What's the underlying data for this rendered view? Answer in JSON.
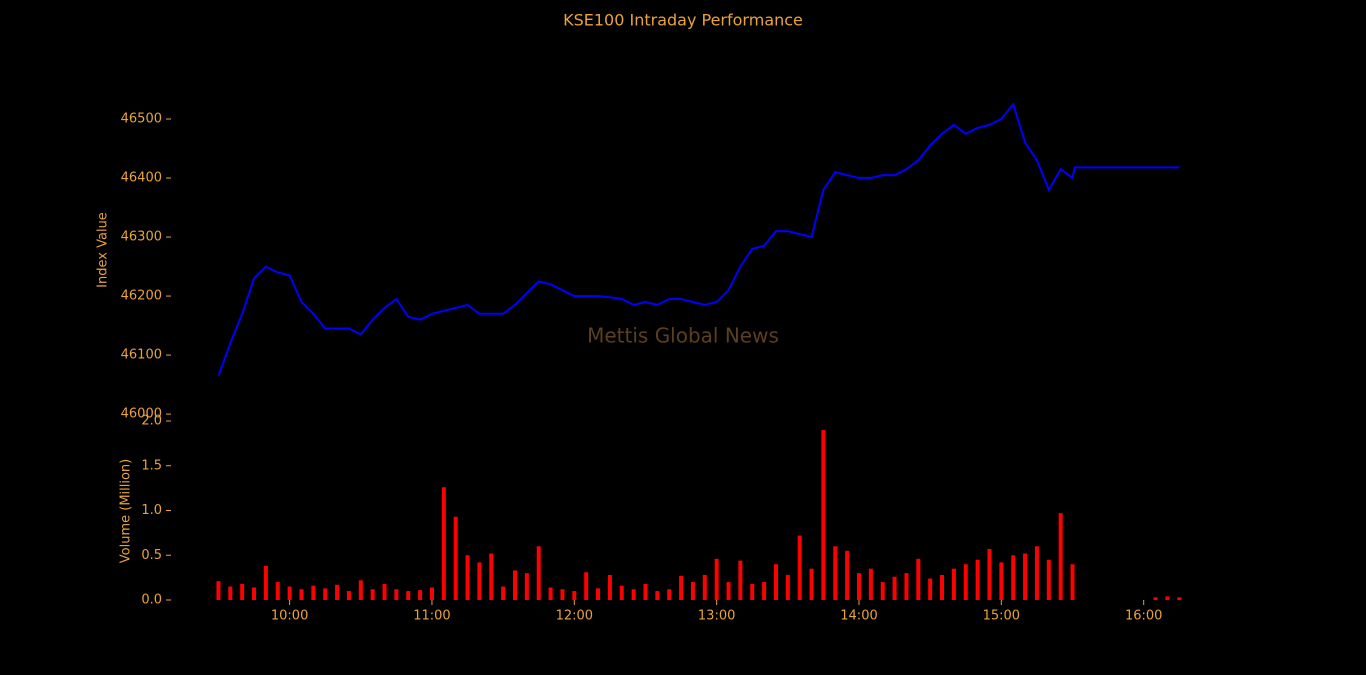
{
  "chart_data": [
    {
      "type": "line",
      "title": "KSE100 Intraday Performance",
      "y_label": "Index Value",
      "annotation": "Mettis Global News",
      "color": "#0000ff",
      "x": [
        570,
        575,
        580,
        585,
        590,
        595,
        600,
        605,
        610,
        615,
        620,
        625,
        630,
        635,
        640,
        645,
        650,
        655,
        660,
        665,
        670,
        675,
        680,
        685,
        690,
        695,
        700,
        705,
        710,
        715,
        720,
        725,
        730,
        735,
        740,
        745,
        750,
        755,
        760,
        765,
        770,
        775,
        780,
        785,
        790,
        795,
        800,
        805,
        810,
        815,
        820,
        825,
        830,
        835,
        840,
        845,
        850,
        855,
        860,
        865,
        870,
        875,
        880,
        885,
        890,
        895,
        900,
        905,
        910,
        915,
        920,
        925,
        930,
        931,
        975
      ],
      "values": [
        46065,
        46120,
        46170,
        46230,
        46250,
        46240,
        46235,
        46190,
        46170,
        46145,
        46145,
        46145,
        46135,
        46160,
        46180,
        46195,
        46165,
        46160,
        46170,
        46175,
        46180,
        46185,
        46170,
        46170,
        46170,
        46185,
        46205,
        46225,
        46220,
        46210,
        46200,
        46200,
        46200,
        46198,
        46195,
        46185,
        46190,
        46185,
        46195,
        46195,
        46190,
        46185,
        46190,
        46210,
        46250,
        46280,
        46285,
        46310,
        46310,
        46305,
        46300,
        46380,
        46410,
        46405,
        46400,
        46400,
        46405,
        46405,
        46415,
        46430,
        46455,
        46475,
        46490,
        46475,
        46485,
        46490,
        46500,
        46525,
        46460,
        46430,
        46380,
        46415,
        46400,
        46418,
        46418
      ],
      "xlim": [
        550,
        985
      ],
      "ylim": [
        45990,
        46600
      ],
      "yticks": [
        46000,
        46100,
        46200,
        46300,
        46400,
        46500
      ]
    },
    {
      "type": "bar",
      "y_label": "Volume (Million)",
      "color": "#ff0000",
      "x": [
        570,
        575,
        580,
        585,
        590,
        595,
        600,
        605,
        610,
        615,
        620,
        625,
        630,
        635,
        640,
        645,
        650,
        655,
        660,
        665,
        670,
        675,
        680,
        685,
        690,
        695,
        700,
        705,
        710,
        715,
        720,
        725,
        730,
        735,
        740,
        745,
        750,
        755,
        760,
        765,
        770,
        775,
        780,
        785,
        790,
        795,
        800,
        805,
        810,
        815,
        820,
        825,
        830,
        835,
        840,
        845,
        850,
        855,
        860,
        865,
        870,
        875,
        880,
        885,
        890,
        895,
        900,
        905,
        910,
        915,
        920,
        925,
        930,
        965,
        970,
        975
      ],
      "values": [
        0.21,
        0.15,
        0.18,
        0.14,
        0.38,
        0.2,
        0.15,
        0.12,
        0.16,
        0.13,
        0.17,
        0.1,
        0.22,
        0.12,
        0.18,
        0.12,
        0.1,
        0.11,
        0.14,
        1.26,
        0.93,
        0.5,
        0.42,
        0.52,
        0.15,
        0.33,
        0.3,
        0.6,
        0.14,
        0.12,
        0.1,
        0.31,
        0.13,
        0.28,
        0.16,
        0.12,
        0.18,
        0.1,
        0.12,
        0.27,
        0.2,
        0.28,
        0.46,
        0.2,
        0.44,
        0.18,
        0.2,
        0.4,
        0.28,
        0.72,
        0.35,
        1.9,
        0.6,
        0.55,
        0.3,
        0.35,
        0.2,
        0.26,
        0.3,
        0.46,
        0.24,
        0.28,
        0.35,
        0.4,
        0.45,
        0.57,
        0.42,
        0.5,
        0.52,
        0.6,
        0.45,
        0.97,
        0.4,
        0.03,
        0.04,
        0.03
      ],
      "xlim": [
        550,
        985
      ],
      "ylim": [
        0,
        2
      ],
      "yticks": [
        {
          "value": 0,
          "label": "0.0"
        },
        0.5,
        {
          "value": 1,
          "label": "1.0"
        },
        1.5,
        {
          "value": 2,
          "label": "2.0"
        }
      ],
      "xticks": [
        {
          "value": 600,
          "label": "10:00"
        },
        {
          "value": 660,
          "label": "11:00"
        },
        {
          "value": 720,
          "label": "12:00"
        },
        {
          "value": 780,
          "label": "13:00"
        },
        {
          "value": 840,
          "label": "14:00"
        },
        {
          "value": 900,
          "label": "15:00"
        },
        {
          "value": 960,
          "label": "16:00"
        }
      ]
    }
  ]
}
